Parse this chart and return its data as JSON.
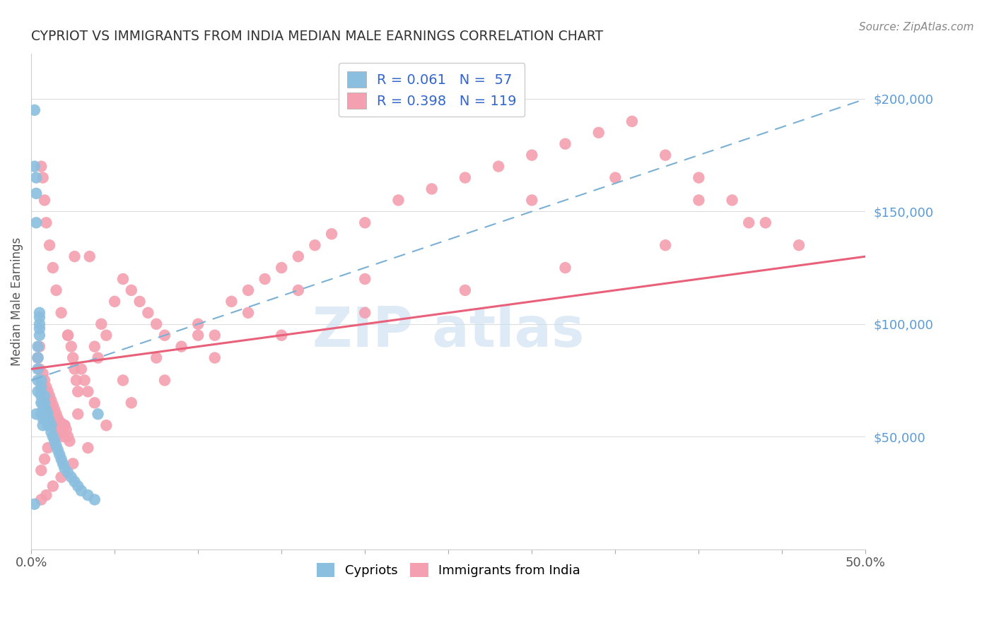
{
  "title": "CYPRIOT VS IMMIGRANTS FROM INDIA MEDIAN MALE EARNINGS CORRELATION CHART",
  "source": "Source: ZipAtlas.com",
  "ylabel": "Median Male Earnings",
  "xlim": [
    0.0,
    0.5
  ],
  "ylim": [
    0,
    220000
  ],
  "xtick_pos": [
    0.0,
    0.05,
    0.1,
    0.15,
    0.2,
    0.25,
    0.3,
    0.35,
    0.4,
    0.45,
    0.5
  ],
  "xtick_labels": [
    "0.0%",
    "",
    "",
    "",
    "",
    "",
    "",
    "",
    "",
    "",
    "50.0%"
  ],
  "ytick_values": [
    50000,
    100000,
    150000,
    200000
  ],
  "ytick_labels": [
    "$50,000",
    "$100,000",
    "$150,000",
    "$200,000"
  ],
  "color_cypriot": "#8bbfdf",
  "color_india": "#f4a0b0",
  "trendline_cypriot_color": "#7ab0d4",
  "trendline_india_color": "#e8607a",
  "background_color": "#ffffff",
  "R_cypriot": 0.061,
  "N_cypriot": 57,
  "R_india": 0.398,
  "N_india": 119,
  "legend_label1": "R = 0.061   N =  57",
  "legend_label2": "R = 0.398   N = 119",
  "cypriot_x": [
    0.002,
    0.002,
    0.003,
    0.003,
    0.003,
    0.003,
    0.004,
    0.004,
    0.004,
    0.004,
    0.004,
    0.005,
    0.005,
    0.005,
    0.005,
    0.005,
    0.006,
    0.006,
    0.006,
    0.006,
    0.006,
    0.006,
    0.007,
    0.007,
    0.007,
    0.007,
    0.008,
    0.008,
    0.008,
    0.008,
    0.009,
    0.009,
    0.009,
    0.01,
    0.01,
    0.01,
    0.011,
    0.011,
    0.012,
    0.012,
    0.013,
    0.014,
    0.015,
    0.016,
    0.017,
    0.018,
    0.019,
    0.02,
    0.022,
    0.024,
    0.026,
    0.028,
    0.03,
    0.034,
    0.038,
    0.002,
    0.04
  ],
  "cypriot_y": [
    195000,
    170000,
    165000,
    158000,
    145000,
    60000,
    70000,
    75000,
    80000,
    85000,
    90000,
    95000,
    98000,
    100000,
    103000,
    105000,
    60000,
    65000,
    68000,
    70000,
    72000,
    75000,
    55000,
    58000,
    62000,
    65000,
    60000,
    62000,
    65000,
    68000,
    58000,
    60000,
    62000,
    55000,
    58000,
    60000,
    55000,
    57000,
    52000,
    55000,
    50000,
    48000,
    46000,
    44000,
    42000,
    40000,
    38000,
    36000,
    34000,
    32000,
    30000,
    28000,
    26000,
    24000,
    22000,
    20000,
    60000
  ],
  "india_x": [
    0.004,
    0.005,
    0.005,
    0.006,
    0.007,
    0.007,
    0.008,
    0.008,
    0.009,
    0.009,
    0.01,
    0.01,
    0.011,
    0.011,
    0.012,
    0.012,
    0.013,
    0.013,
    0.014,
    0.014,
    0.015,
    0.015,
    0.016,
    0.016,
    0.017,
    0.018,
    0.018,
    0.019,
    0.02,
    0.021,
    0.022,
    0.022,
    0.023,
    0.024,
    0.025,
    0.026,
    0.026,
    0.027,
    0.028,
    0.03,
    0.032,
    0.034,
    0.035,
    0.038,
    0.04,
    0.042,
    0.045,
    0.05,
    0.055,
    0.06,
    0.065,
    0.07,
    0.075,
    0.08,
    0.09,
    0.1,
    0.11,
    0.12,
    0.13,
    0.14,
    0.15,
    0.16,
    0.17,
    0.18,
    0.2,
    0.22,
    0.24,
    0.26,
    0.28,
    0.3,
    0.32,
    0.34,
    0.36,
    0.38,
    0.4,
    0.42,
    0.44,
    0.46,
    0.2,
    0.16,
    0.13,
    0.1,
    0.075,
    0.055,
    0.038,
    0.028,
    0.02,
    0.015,
    0.01,
    0.008,
    0.006,
    0.3,
    0.35,
    0.4,
    0.43,
    0.38,
    0.32,
    0.26,
    0.2,
    0.15,
    0.11,
    0.08,
    0.06,
    0.045,
    0.034,
    0.025,
    0.018,
    0.013,
    0.009,
    0.006,
    0.006,
    0.007,
    0.008,
    0.009,
    0.011,
    0.013,
    0.015,
    0.018,
    0.022
  ],
  "india_y": [
    85000,
    80000,
    90000,
    75000,
    72000,
    78000,
    70000,
    75000,
    68000,
    72000,
    66000,
    70000,
    64000,
    68000,
    62000,
    66000,
    60000,
    64000,
    58000,
    62000,
    56000,
    60000,
    55000,
    58000,
    54000,
    52000,
    56000,
    50000,
    55000,
    53000,
    50000,
    95000,
    48000,
    90000,
    85000,
    80000,
    130000,
    75000,
    70000,
    80000,
    75000,
    70000,
    130000,
    90000,
    85000,
    100000,
    95000,
    110000,
    120000,
    115000,
    110000,
    105000,
    100000,
    95000,
    90000,
    100000,
    95000,
    110000,
    115000,
    120000,
    125000,
    130000,
    135000,
    140000,
    145000,
    155000,
    160000,
    165000,
    170000,
    175000,
    180000,
    185000,
    190000,
    175000,
    165000,
    155000,
    145000,
    135000,
    120000,
    115000,
    105000,
    95000,
    85000,
    75000,
    65000,
    60000,
    55000,
    50000,
    45000,
    40000,
    35000,
    155000,
    165000,
    155000,
    145000,
    135000,
    125000,
    115000,
    105000,
    95000,
    85000,
    75000,
    65000,
    55000,
    45000,
    38000,
    32000,
    28000,
    24000,
    22000,
    170000,
    165000,
    155000,
    145000,
    135000,
    125000,
    115000,
    105000,
    95000
  ]
}
